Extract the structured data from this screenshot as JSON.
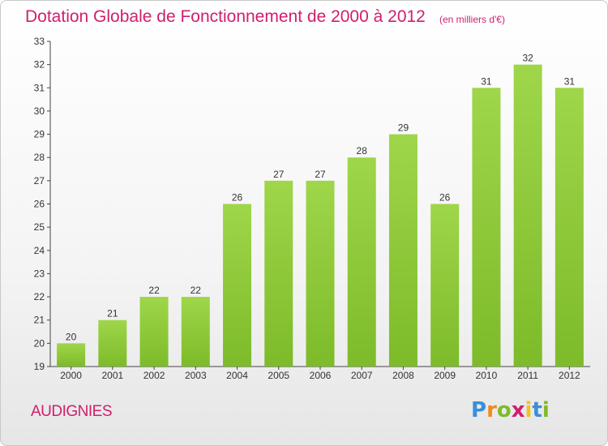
{
  "header": {
    "title": "Dotation Globale de Fonctionnement de 2000 à 2012",
    "subtitle": "(en milliers d'€)"
  },
  "commune": "AUDIGNIES",
  "logo": {
    "letters": [
      {
        "ch": "P",
        "color": "#3a8fd8"
      },
      {
        "ch": "r",
        "color": "#f08a1c"
      },
      {
        "ch": "o",
        "color": "#7dbb2a"
      },
      {
        "ch": "x",
        "color": "#d01e6e"
      },
      {
        "ch": "i",
        "color": "#f0c419"
      },
      {
        "ch": "t",
        "color": "#3a8fd8"
      },
      {
        "ch": "i",
        "color": "#7dbb2a"
      }
    ]
  },
  "chart_data": {
    "type": "bar",
    "categories": [
      "2000",
      "2001",
      "2002",
      "2003",
      "2004",
      "2005",
      "2006",
      "2007",
      "2008",
      "2009",
      "2010",
      "2011",
      "2012"
    ],
    "values": [
      20,
      21,
      22,
      22,
      26,
      27,
      27,
      28,
      29,
      26,
      31,
      32,
      31
    ],
    "ylim": [
      19,
      33
    ],
    "yticks": [
      19,
      20,
      21,
      22,
      23,
      24,
      25,
      26,
      27,
      28,
      29,
      30,
      31,
      32,
      33
    ],
    "grid": false,
    "bar_color": "#7dbb2a",
    "bar_color_light": "#9fd64a",
    "data_labels": true
  }
}
